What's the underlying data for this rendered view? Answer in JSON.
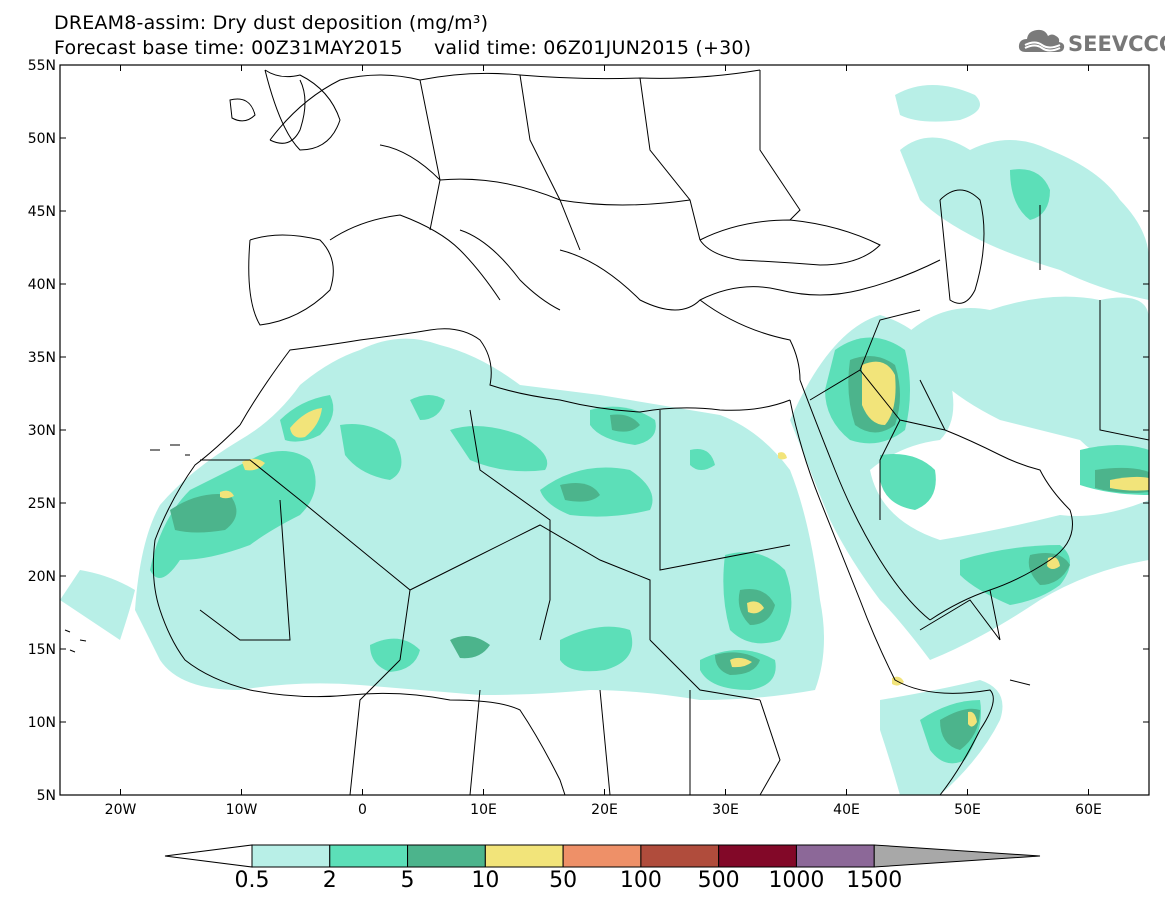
{
  "header": {
    "title_line1": "DREAM8-assim: Dry dust deposition (mg/m³)",
    "title_line2": "Forecast base time: 00Z31MAY2015     valid time: 06Z01JUN2015 (+30)",
    "logo_text": "SEEVCCC"
  },
  "map": {
    "type": "contour-map",
    "lon_range": [
      -25,
      65
    ],
    "lat_range": [
      5,
      55
    ],
    "lat_labels": [
      "55N",
      "50N",
      "45N",
      "40N",
      "35N",
      "30N",
      "25N",
      "20N",
      "15N",
      "10N",
      "5N"
    ],
    "lat_values": [
      55,
      50,
      45,
      40,
      35,
      30,
      25,
      20,
      15,
      10,
      5
    ],
    "lon_labels": [
      "20W",
      "10W",
      "0",
      "10E",
      "20E",
      "30E",
      "40E",
      "50E",
      "60E"
    ],
    "lon_values": [
      -20,
      -10,
      0,
      10,
      20,
      30,
      40,
      50,
      60
    ],
    "grid": false,
    "variable": "Dry dust deposition",
    "units": "mg/m³"
  },
  "colorbar": {
    "labels": [
      "0.5",
      "2",
      "5",
      "10",
      "50",
      "100",
      "500",
      "1000",
      "1500"
    ],
    "colors": [
      "#b8efe7",
      "#5cdfb8",
      "#4cb48c",
      "#f2e47a",
      "#ee9068",
      "#b04c3c",
      "#820828",
      "#8c6898",
      "#a8a8a8"
    ]
  }
}
